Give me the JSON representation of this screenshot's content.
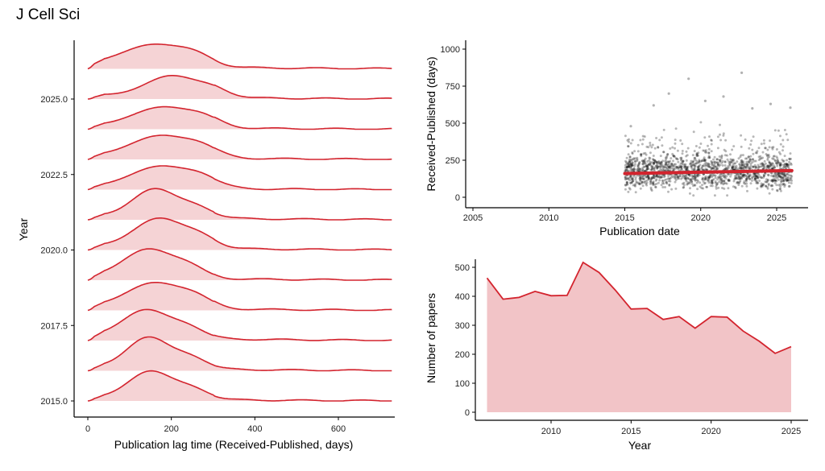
{
  "title": "J Cell Sci",
  "colors": {
    "accent": "#d3242e",
    "fill": "#f2c4c7",
    "point": "#000000"
  },
  "chart_data": [
    {
      "type": "area",
      "subtype": "ridgeline",
      "xlabel": "Publication lag time (Received-Published, days)",
      "ylabel": "Year",
      "xlim": [
        0,
        730
      ],
      "xticks": [
        "0",
        "200",
        "400",
        "600"
      ],
      "yticks": [
        "2015.0",
        "2017.5",
        "2020.0",
        "2022.5",
        "2025.0"
      ],
      "series": [
        {
          "year": 2015,
          "peak": 150,
          "width": 52,
          "height": 1.7,
          "tail": 0.25
        },
        {
          "year": 2016,
          "peak": 145,
          "width": 50,
          "height": 1.9,
          "tail": 0.3
        },
        {
          "year": 2017,
          "peak": 140,
          "width": 55,
          "height": 1.7,
          "tail": 0.35
        },
        {
          "year": 2018,
          "peak": 160,
          "width": 65,
          "height": 1.55,
          "tail": 0.3
        },
        {
          "year": 2019,
          "peak": 145,
          "width": 58,
          "height": 1.75,
          "tail": 0.3
        },
        {
          "year": 2020,
          "peak": 170,
          "width": 58,
          "height": 1.8,
          "tail": 0.3
        },
        {
          "year": 2021,
          "peak": 160,
          "width": 52,
          "height": 1.75,
          "tail": 0.3
        },
        {
          "year": 2022,
          "peak": 175,
          "width": 70,
          "height": 1.35,
          "tail": 0.2
        },
        {
          "year": 2023,
          "peak": 175,
          "width": 70,
          "height": 1.35,
          "tail": 0.25
        },
        {
          "year": 2024,
          "peak": 180,
          "width": 70,
          "height": 1.25,
          "tail": 0.25
        },
        {
          "year": 2025,
          "peak": 200,
          "width": 60,
          "height": 1.3,
          "tail": 0.3
        },
        {
          "year": 2026,
          "peak": 160,
          "width": 75,
          "height": 1.35,
          "tail": 0.3
        }
      ]
    },
    {
      "type": "scatter",
      "xlabel": "Publication date",
      "ylabel": "Received-Published (days)",
      "xlim": [
        2004.5,
        2027
      ],
      "ylim": [
        -30,
        1060
      ],
      "xticks": [
        2005,
        2010,
        2015,
        2020,
        2025
      ],
      "yticks": [
        0,
        250,
        500,
        750,
        1000
      ],
      "trend": [
        [
          2015.0,
          160
        ],
        [
          2026.0,
          180
        ]
      ],
      "outliers": [
        [
          2019.2,
          800
        ],
        [
          2022.7,
          840
        ],
        [
          2017.9,
          700
        ],
        [
          2021.5,
          680
        ],
        [
          2024.6,
          630
        ],
        [
          2015.4,
          480
        ],
        [
          2016.9,
          620
        ],
        [
          2020.3,
          650
        ],
        [
          2023.4,
          600
        ],
        [
          2025.9,
          605
        ]
      ],
      "points_summary": {
        "x_range": [
          2015.0,
          2026.0
        ],
        "count": 3500,
        "median": 170
      }
    },
    {
      "type": "area",
      "xlabel": "Year",
      "ylabel": "Number of papers",
      "xlim": [
        2005,
        2026
      ],
      "ylim": [
        -15,
        540
      ],
      "xticks": [
        2010,
        2015,
        2020,
        2025
      ],
      "yticks": [
        0,
        100,
        200,
        300,
        400,
        500
      ],
      "x": [
        2006,
        2007,
        2008,
        2009,
        2010,
        2011,
        2012,
        2013,
        2014,
        2015,
        2016,
        2017,
        2018,
        2019,
        2020,
        2021,
        2022,
        2023,
        2024,
        2025
      ],
      "values": [
        463,
        390,
        396,
        417,
        402,
        403,
        517,
        482,
        422,
        356,
        358,
        320,
        330,
        290,
        330,
        328,
        280,
        245,
        203,
        226
      ]
    }
  ]
}
